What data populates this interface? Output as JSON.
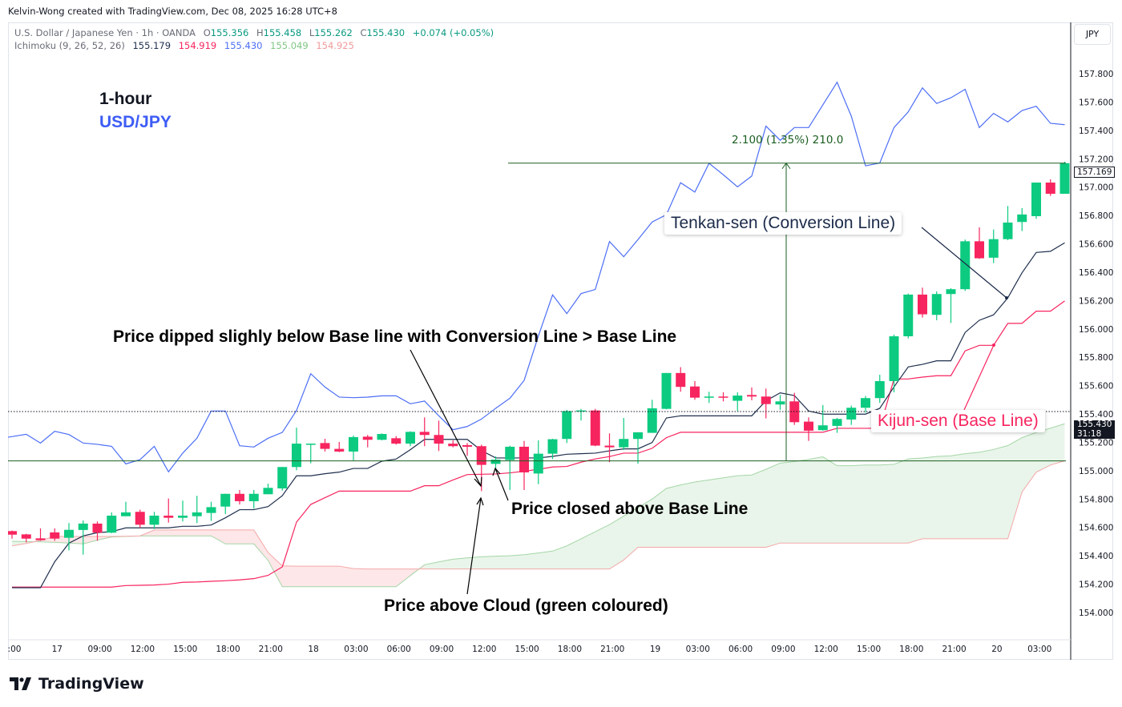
{
  "watermark": "Kelvin-Wong created with TradingView.com, Dec 08, 2025 16:28 UTC+8",
  "legend": {
    "symbol": "U.S. Dollar / Japanese Yen · 1h · OANDA",
    "o_label": "O",
    "open": "155.356",
    "h_label": "H",
    "high": "155.458",
    "l_label": "L",
    "low": "155.262",
    "c_label": "C",
    "close": "155.430",
    "change": "+0.074 (+0.05%)",
    "indicator": "Ichimoku (9, 26, 52, 26)",
    "indicator_values": [
      "155.179",
      "154.919",
      "155.430",
      "155.049",
      "154.925"
    ]
  },
  "annotations": {
    "timeframe": "1-hour",
    "pair": "USD/JPY",
    "dip_note": "Price dipped slighly below Base line with Conversion Line > Base Line",
    "closed_note": "Price closed above Base Line",
    "cloud_note": "Price above Cloud (green coloured)",
    "tenkan_label": "Tenkan-sen (Conversion Line)",
    "kijun_label": "Kijun-sen (Base Line)"
  },
  "measure": {
    "label": "2.100 (1.35%) 210.0",
    "from_price": 155.069,
    "to_price": 157.169
  },
  "price_axis": {
    "currency": "JPY",
    "ticks": [
      "157.800",
      "157.600",
      "157.400",
      "157.200",
      "157.000",
      "156.800",
      "156.600",
      "156.400",
      "156.200",
      "156.000",
      "155.800",
      "155.600",
      "155.400",
      "155.200",
      "155.000",
      "154.800",
      "154.600",
      "154.400",
      "154.200",
      "154.000"
    ],
    "last_price": "157.169",
    "current_price": "155.430",
    "countdown": "31:18"
  },
  "time_axis": {
    "labels": [
      ":00",
      "17",
      "09:00",
      "12:00",
      "15:00",
      "18:00",
      "21:00",
      "18",
      "03:00",
      "06:00",
      "09:00",
      "12:00",
      "15:00",
      "18:00",
      "21:00",
      "19",
      "03:00",
      "06:00",
      "09:00",
      "12:00",
      "15:00",
      "18:00",
      "21:00",
      "20",
      "03:00"
    ]
  },
  "brand": "TradingView",
  "colors": {
    "bull": "#0ccb80",
    "bear": "#f7255f",
    "conversion": "#1f2f4d",
    "base": "#f7245f",
    "lagging": "#4c6ef5",
    "lead_a": "#a5d6a7",
    "lead_b": "#f4a8a8",
    "cloud_bull": "rgba(76,175,80,0.12)",
    "cloud_bear": "rgba(242,54,69,0.12)",
    "measure": "#1b5e20",
    "pair_text": "#3d5cf5"
  },
  "chart_data": {
    "type": "candlestick",
    "y_range": [
      153.9,
      158.0
    ],
    "ohlc": [
      [
        154.574,
        154.578,
        154.521,
        154.549
      ],
      [
        154.551,
        154.555,
        154.495,
        154.521
      ],
      [
        154.523,
        154.593,
        154.506,
        154.51
      ],
      [
        154.565,
        154.593,
        154.506,
        154.521
      ],
      [
        154.527,
        154.631,
        154.438,
        154.583
      ],
      [
        154.582,
        154.649,
        154.408,
        154.627
      ],
      [
        154.627,
        154.642,
        154.506,
        154.563
      ],
      [
        154.563,
        154.706,
        154.559,
        154.683
      ],
      [
        154.679,
        154.781,
        154.679,
        154.706
      ],
      [
        154.71,
        154.725,
        154.597,
        154.619
      ],
      [
        154.619,
        154.71,
        154.589,
        154.683
      ],
      [
        154.683,
        154.804,
        154.634,
        154.668
      ],
      [
        154.668,
        154.789,
        154.642,
        154.683
      ],
      [
        154.679,
        154.823,
        154.63,
        154.706
      ],
      [
        154.702,
        154.781,
        154.646,
        154.743
      ],
      [
        154.747,
        154.837,
        154.694,
        154.837
      ],
      [
        154.837,
        154.864,
        154.762,
        154.785
      ],
      [
        154.785,
        154.864,
        154.732,
        154.837
      ],
      [
        154.834,
        154.909,
        154.834,
        154.879
      ],
      [
        154.875,
        155.026,
        154.86,
        155.026
      ],
      [
        155.026,
        155.304,
        155.003,
        155.191
      ],
      [
        155.184,
        155.191,
        155.052,
        155.191
      ],
      [
        155.195,
        155.225,
        155.135,
        155.154
      ],
      [
        155.154,
        155.203,
        155.131,
        155.135
      ],
      [
        155.135,
        155.248,
        155.071,
        155.237
      ],
      [
        155.24,
        155.252,
        155.165,
        155.218
      ],
      [
        155.218,
        155.263,
        155.214,
        155.259
      ],
      [
        155.229,
        155.244,
        155.184,
        155.191
      ],
      [
        155.191,
        155.278,
        155.173,
        155.274
      ],
      [
        155.274,
        155.376,
        155.173,
        155.252
      ],
      [
        155.252,
        155.353,
        155.139,
        155.191
      ],
      [
        155.191,
        155.214,
        155.165,
        155.173
      ],
      [
        155.18,
        155.195,
        155.105,
        155.169
      ],
      [
        155.173,
        155.184,
        154.856,
        155.041
      ],
      [
        155.048,
        155.101,
        155.007,
        155.078
      ],
      [
        155.075,
        155.176,
        154.864,
        155.169
      ],
      [
        155.169,
        155.21,
        154.864,
        154.988
      ],
      [
        154.98,
        155.214,
        154.905,
        155.12
      ],
      [
        155.12,
        155.225,
        155.082,
        155.222
      ],
      [
        155.224,
        155.429,
        155.195,
        155.421
      ],
      [
        155.42,
        155.436,
        155.354,
        155.425
      ],
      [
        155.425,
        155.436,
        155.173,
        155.177
      ],
      [
        155.177,
        155.263,
        155.06,
        155.165
      ],
      [
        155.165,
        155.372,
        155.146,
        155.224
      ],
      [
        155.224,
        155.271,
        155.049,
        155.271
      ],
      [
        155.267,
        155.5,
        155.267,
        155.44
      ],
      [
        155.436,
        155.689,
        155.433,
        155.689
      ],
      [
        155.689,
        155.73,
        155.557,
        155.591
      ],
      [
        155.594,
        155.632,
        155.5,
        155.515
      ],
      [
        155.519,
        155.557,
        155.478,
        155.523
      ],
      [
        155.523,
        155.553,
        155.489,
        155.519
      ],
      [
        155.493,
        155.553,
        155.421,
        155.53
      ],
      [
        155.534,
        155.587,
        155.497,
        155.523
      ],
      [
        155.523,
        155.579,
        155.369,
        155.47
      ],
      [
        155.467,
        155.534,
        155.429,
        155.489
      ],
      [
        155.489,
        155.549,
        155.323,
        155.342
      ],
      [
        155.346,
        155.376,
        155.21,
        155.282
      ],
      [
        155.286,
        155.463,
        155.282,
        155.32
      ],
      [
        155.316,
        155.372,
        155.267,
        155.365
      ],
      [
        155.361,
        155.459,
        155.323,
        155.444
      ],
      [
        155.444,
        155.527,
        155.41,
        155.512
      ],
      [
        155.512,
        155.677,
        155.478,
        155.632
      ],
      [
        155.632,
        155.96,
        155.553,
        155.948
      ],
      [
        155.948,
        156.249,
        155.933,
        156.242
      ],
      [
        156.242,
        156.291,
        156.08,
        156.103
      ],
      [
        156.099,
        156.265,
        156.061,
        156.246
      ],
      [
        156.246,
        156.287,
        156.042,
        156.28
      ],
      [
        156.28,
        156.63,
        156.268,
        156.618
      ],
      [
        156.618,
        156.716,
        156.494,
        156.498
      ],
      [
        156.502,
        156.701,
        156.464,
        156.633
      ],
      [
        156.633,
        156.867,
        156.626,
        156.75
      ],
      [
        156.754,
        156.852,
        156.69,
        156.807
      ],
      [
        156.795,
        157.032,
        156.776,
        157.032
      ],
      [
        157.032,
        157.055,
        156.938,
        156.953
      ],
      [
        156.953,
        157.179,
        156.953,
        157.169
      ]
    ],
    "lines": {
      "conversion": [
        154.175,
        154.175,
        154.175,
        154.358,
        154.489,
        154.54,
        154.563,
        154.57,
        154.597,
        154.597,
        154.597,
        154.597,
        154.608,
        154.608,
        154.617,
        154.668,
        154.725,
        154.725,
        154.747,
        154.824,
        154.964,
        154.964,
        154.979,
        154.99,
        155.016,
        155.016,
        155.067,
        155.082,
        155.148,
        155.221,
        155.221,
        155.221,
        155.221,
        155.142,
        155.09,
        155.09,
        155.09,
        155.09,
        155.101,
        155.116,
        155.12,
        155.124,
        155.14,
        155.154,
        155.154,
        155.199,
        155.372,
        155.387,
        155.387,
        155.387,
        155.387,
        155.387,
        155.387,
        155.493,
        155.549,
        155.53,
        155.421,
        155.399,
        155.399,
        155.399,
        155.399,
        155.44,
        155.591,
        155.732,
        155.75,
        155.775,
        155.775,
        155.975,
        156.061,
        156.099,
        156.219,
        156.396,
        156.539,
        156.547,
        156.607
      ],
      "base": [
        154.179,
        154.179,
        154.179,
        154.179,
        154.179,
        154.179,
        154.179,
        154.179,
        154.19,
        154.192,
        154.194,
        154.2,
        154.213,
        154.215,
        154.22,
        154.224,
        154.23,
        154.239,
        154.262,
        154.322,
        154.638,
        154.762,
        154.81,
        154.856,
        154.856,
        154.856,
        154.856,
        154.856,
        154.856,
        154.894,
        154.894,
        154.935,
        154.973,
        154.975,
        154.977,
        154.985,
        154.996,
        155.01,
        155.026,
        155.03,
        155.06,
        155.083,
        155.1,
        155.124,
        155.124,
        155.158,
        155.233,
        155.271,
        155.271,
        155.271,
        155.271,
        155.271,
        155.271,
        155.271,
        155.271,
        155.271,
        155.271,
        155.271,
        155.299,
        155.299,
        155.299,
        155.3,
        155.647,
        155.647,
        155.66,
        155.67,
        155.67,
        155.845,
        155.884,
        155.884,
        156.039,
        156.039,
        156.125,
        156.125,
        156.197
      ],
      "lagging": [
        155.236,
        155.257,
        155.195,
        155.278,
        155.255,
        155.195,
        155.186,
        155.172,
        155.048,
        155.078,
        155.172,
        154.992,
        155.124,
        155.229,
        155.421,
        155.421,
        155.176,
        155.167,
        155.229,
        155.27,
        155.425,
        155.684,
        155.59,
        155.519,
        155.515,
        155.519,
        155.528,
        155.528,
        155.472,
        155.491,
        155.387,
        155.289,
        155.312,
        155.364,
        155.44,
        155.511,
        155.637,
        155.95,
        156.24,
        156.108,
        156.249,
        156.278,
        156.616,
        156.509,
        156.63,
        156.754,
        156.805,
        157.031,
        156.965,
        157.168,
        157.087,
        157.002,
        157.078,
        157.43,
        157.33,
        157.42,
        157.42,
        157.58,
        157.74,
        157.5,
        157.15,
        157.17,
        157.42,
        157.53,
        157.7,
        157.59,
        157.63,
        157.69,
        157.42,
        157.52,
        157.46,
        157.54,
        157.57,
        157.45,
        157.44
      ],
      "lead_a": [
        154.502,
        154.5,
        154.498,
        154.495,
        154.49,
        154.484,
        154.51,
        154.533,
        154.536,
        154.54,
        154.54,
        154.54,
        154.54,
        154.54,
        154.54,
        154.484,
        154.484,
        154.484,
        154.367,
        154.182,
        154.182,
        154.182,
        154.182,
        154.182,
        154.182,
        154.182,
        154.182,
        154.182,
        154.26,
        154.337,
        154.357,
        154.376,
        154.385,
        154.393,
        154.397,
        154.4,
        154.408,
        154.42,
        154.433,
        154.47,
        154.52,
        154.57,
        154.62,
        154.68,
        154.74,
        154.8,
        154.875,
        154.9,
        154.92,
        154.935,
        154.95,
        154.965,
        154.97,
        155.01,
        155.054,
        155.064,
        155.08,
        155.098,
        155.035,
        155.035,
        155.04,
        155.04,
        155.045,
        155.083,
        155.09,
        155.1,
        155.105,
        155.12,
        155.13,
        155.15,
        155.177,
        155.233,
        155.27,
        155.3,
        155.331
      ],
      "lead_b": [
        154.47,
        154.487,
        154.508,
        154.536,
        154.536,
        154.536,
        154.536,
        154.536,
        154.538,
        154.54,
        154.582,
        154.582,
        154.582,
        154.582,
        154.582,
        154.582,
        154.582,
        154.582,
        154.423,
        154.329,
        154.327,
        154.327,
        154.327,
        154.327,
        154.31,
        154.307,
        154.307,
        154.307,
        154.307,
        154.307,
        154.307,
        154.307,
        154.307,
        154.307,
        154.307,
        154.307,
        154.307,
        154.307,
        154.307,
        154.307,
        154.307,
        154.307,
        154.307,
        154.37,
        154.46,
        154.46,
        154.46,
        154.46,
        154.46,
        154.46,
        154.46,
        154.46,
        154.46,
        154.46,
        154.49,
        154.49,
        154.49,
        154.49,
        154.49,
        154.49,
        154.49,
        154.49,
        154.49,
        154.49,
        154.52,
        154.52,
        154.52,
        154.52,
        154.52,
        154.52,
        154.52,
        154.85,
        154.99,
        155.04,
        155.07
      ]
    }
  }
}
